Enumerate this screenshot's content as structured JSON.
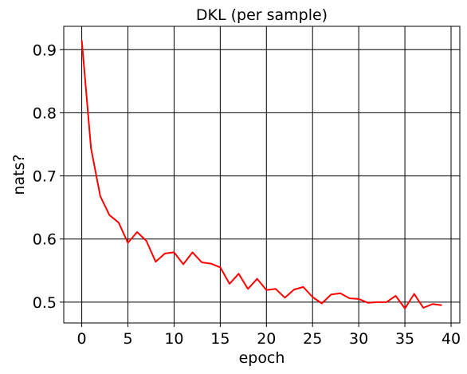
{
  "chart_data": {
    "type": "line",
    "title": "DKL (per sample)",
    "xlabel": "epoch",
    "ylabel": "nats?",
    "xlim": [
      -1.95,
      40.95
    ],
    "ylim": [
      0.467,
      0.937
    ],
    "xticks": [
      0,
      5,
      10,
      15,
      20,
      25,
      30,
      35,
      40
    ],
    "yticks": [
      0.5,
      0.6,
      0.7,
      0.8,
      0.9
    ],
    "grid": true,
    "legend": "none",
    "series": [
      {
        "color": "#ff0000",
        "x": [
          0,
          1,
          2,
          3,
          4,
          5,
          6,
          7,
          8,
          9,
          10,
          11,
          12,
          13,
          14,
          15,
          16,
          17,
          18,
          19,
          20,
          21,
          22,
          23,
          24,
          25,
          26,
          27,
          28,
          29,
          30,
          31,
          32,
          33,
          34,
          35,
          36,
          37,
          38,
          39
        ],
        "y": [
          0.915,
          0.744,
          0.668,
          0.638,
          0.626,
          0.594,
          0.611,
          0.597,
          0.564,
          0.577,
          0.579,
          0.56,
          0.579,
          0.563,
          0.561,
          0.555,
          0.529,
          0.545,
          0.521,
          0.537,
          0.519,
          0.521,
          0.507,
          0.52,
          0.524,
          0.508,
          0.498,
          0.512,
          0.514,
          0.506,
          0.505,
          0.499,
          0.5,
          0.5,
          0.51,
          0.49,
          0.513,
          0.491,
          0.497,
          0.495
        ]
      }
    ]
  }
}
